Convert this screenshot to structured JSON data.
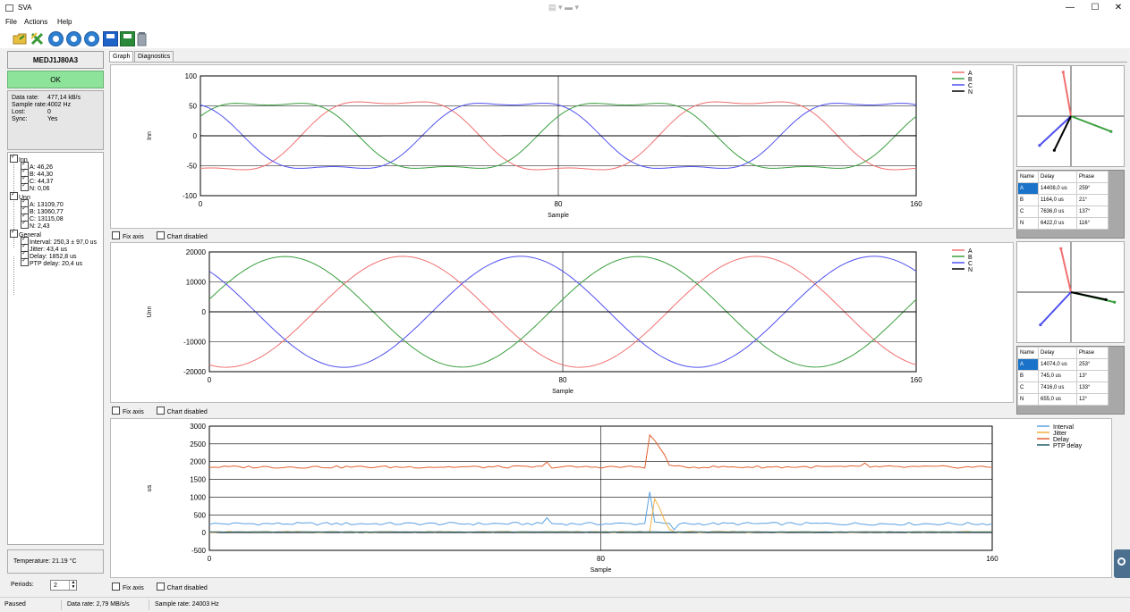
{
  "window": {
    "title": "SVA",
    "controls": {
      "minimize": "—",
      "maximize": "☐",
      "close": "✕"
    },
    "center_indicator": "▤ ▾ ▬ ▾"
  },
  "menu": [
    "File",
    "Actions",
    "Help"
  ],
  "toolbar": [
    {
      "icon": "open-folder-icon"
    },
    {
      "icon": "disconnect-icon"
    },
    {
      "icon": "play-icon"
    },
    {
      "icon": "pause-icon"
    },
    {
      "icon": "stop-icon"
    },
    {
      "icon": "save-icon"
    },
    {
      "icon": "save-as-icon"
    },
    {
      "icon": "trash-icon"
    }
  ],
  "device": {
    "name": "MEDJ1J80A3",
    "status": "OK",
    "status_color": "#8ee39a"
  },
  "stats": [
    {
      "label": "Data rate:",
      "value": "477,14 kB/s"
    },
    {
      "label": "Sample rate:",
      "value": "4002 Hz"
    },
    {
      "label": "Lost:",
      "value": "0"
    },
    {
      "label": "Sync:",
      "value": "Yes"
    }
  ],
  "tree": {
    "inn": {
      "label": "Inn",
      "children": [
        "A: 46,26",
        "B: 44,30",
        "C: 44,37",
        "N: 0,06"
      ]
    },
    "unn": {
      "label": "Unn",
      "children": [
        "A: 13109,70",
        "B: 13060,77",
        "C: 13115,08",
        "N: 2,43"
      ]
    },
    "general": {
      "label": "General",
      "children": [
        "Interval: 250,3 ± 97,0 us",
        "Jitter: 43,4 us",
        "Delay: 1852,8 us",
        "PTP delay: 20,4 us"
      ]
    }
  },
  "temperature": "Temperature:  21.19 °C",
  "periods": {
    "label": "Periods:",
    "value": "2"
  },
  "tabs": [
    "Graph",
    "Diagnostics"
  ],
  "options": {
    "fix_axis": "Fix axis",
    "chart_disabled": "Chart disabled"
  },
  "colors": {
    "A": "#f07070",
    "B": "#3ca040",
    "C": "#5050f0",
    "N": "#000000",
    "interval": "#5aa0e0",
    "jitter": "#f0b040",
    "delay": "#e06030",
    "ptp": "#1e5e6e"
  },
  "chart_data": [
    {
      "type": "line",
      "id": "inn",
      "xlabel": "Sample",
      "ylabel": "Inn",
      "xlim": [
        0,
        160
      ],
      "ylim": [
        -100,
        100
      ],
      "xticks": [
        0,
        80,
        160
      ],
      "yticks": [
        100,
        50,
        0,
        -50,
        -100
      ],
      "grid": true,
      "legend": "top-right",
      "series": [
        {
          "name": "A",
          "amplitude": 46.26,
          "phase_deg": 259,
          "periods": 2
        },
        {
          "name": "B",
          "amplitude": 44.3,
          "phase_deg": 21,
          "periods": 2
        },
        {
          "name": "C",
          "amplitude": 44.37,
          "phase_deg": 137,
          "periods": 2
        },
        {
          "name": "N",
          "amplitude": 0.06,
          "phase_deg": 116,
          "periods": 2
        }
      ]
    },
    {
      "type": "line",
      "id": "unn",
      "xlabel": "Sample",
      "ylabel": "Unn",
      "xlim": [
        0,
        160
      ],
      "ylim": [
        -20000,
        20000
      ],
      "xticks": [
        0,
        80,
        160
      ],
      "yticks": [
        20000,
        10000,
        0,
        -10000,
        -20000
      ],
      "grid": true,
      "legend": "top-right",
      "series": [
        {
          "name": "A",
          "amplitude": 13109.7,
          "phase_deg": 253,
          "periods": 2
        },
        {
          "name": "B",
          "amplitude": 13060.77,
          "phase_deg": 13,
          "periods": 2
        },
        {
          "name": "C",
          "amplitude": 13115.08,
          "phase_deg": 133,
          "periods": 2
        },
        {
          "name": "N",
          "amplitude": 2.43,
          "phase_deg": 12,
          "periods": 2
        }
      ]
    },
    {
      "type": "line",
      "id": "general",
      "xlabel": "Sample",
      "ylabel": "us",
      "xlim": [
        0,
        160
      ],
      "ylim": [
        -500,
        3000
      ],
      "xticks": [
        0,
        80,
        160
      ],
      "yticks": [
        3000,
        2500,
        2000,
        1500,
        1000,
        500,
        0,
        -500
      ],
      "grid": true,
      "legend": "top-right",
      "series": [
        {
          "name": "Interval",
          "base": 250,
          "noise": 40,
          "spikes": [
            [
              69,
              420
            ],
            [
              90,
              1150
            ],
            [
              91,
              300
            ],
            [
              95,
              80
            ]
          ]
        },
        {
          "name": "Jitter",
          "base": 20,
          "noise": 15,
          "spikes": [
            [
              91,
              950
            ],
            [
              92,
              700
            ],
            [
              93,
              350
            ],
            [
              94,
              100
            ]
          ]
        },
        {
          "name": "Delay",
          "base": 1850,
          "noise": 35,
          "spikes": [
            [
              69,
              1990
            ],
            [
              90,
              2750
            ],
            [
              91,
              2600
            ],
            [
              92,
              2400
            ],
            [
              93,
              2200
            ],
            [
              94,
              1900
            ],
            [
              134,
              1960
            ]
          ]
        },
        {
          "name": "PTP delay",
          "base": 20,
          "noise": 4,
          "spikes": []
        }
      ]
    }
  ],
  "phase_tables": [
    {
      "headers": [
        "Name",
        "Delay",
        "Phase"
      ],
      "rows": [
        [
          "A",
          "14408,0 us",
          "259°"
        ],
        [
          "B",
          "1164,0 us",
          "21°"
        ],
        [
          "C",
          "7636,0 us",
          "137°"
        ],
        [
          "N",
          "6422,0 us",
          "116°"
        ]
      ],
      "selected": 0
    },
    {
      "headers": [
        "Name",
        "Delay",
        "Phase"
      ],
      "rows": [
        [
          "A",
          "14074,0 us",
          "253°"
        ],
        [
          "B",
          "745,0 us",
          "13°"
        ],
        [
          "C",
          "7416,0 us",
          "133°"
        ],
        [
          "N",
          "655,0 us",
          "12°"
        ]
      ],
      "selected": 0
    }
  ],
  "phasors": [
    {
      "vectors": [
        {
          "name": "A",
          "angle_deg": 100,
          "mag": 1
        },
        {
          "name": "B",
          "angle_deg": -21,
          "mag": 0.96
        },
        {
          "name": "C",
          "angle_deg": -137,
          "mag": 0.96
        },
        {
          "name": "N",
          "angle_deg": -116,
          "mag": 0.85
        }
      ]
    },
    {
      "vectors": [
        {
          "name": "A",
          "angle_deg": 103,
          "mag": 1
        },
        {
          "name": "B",
          "angle_deg": -13,
          "mag": 1
        },
        {
          "name": "C",
          "angle_deg": -133,
          "mag": 1
        },
        {
          "name": "N",
          "angle_deg": -12,
          "mag": 0.8
        }
      ]
    }
  ],
  "status": {
    "state": "Paused",
    "data_rate": "Data rate: 2,79 MB/s/s",
    "sample_rate": "Sample rate: 24003 Hz"
  }
}
